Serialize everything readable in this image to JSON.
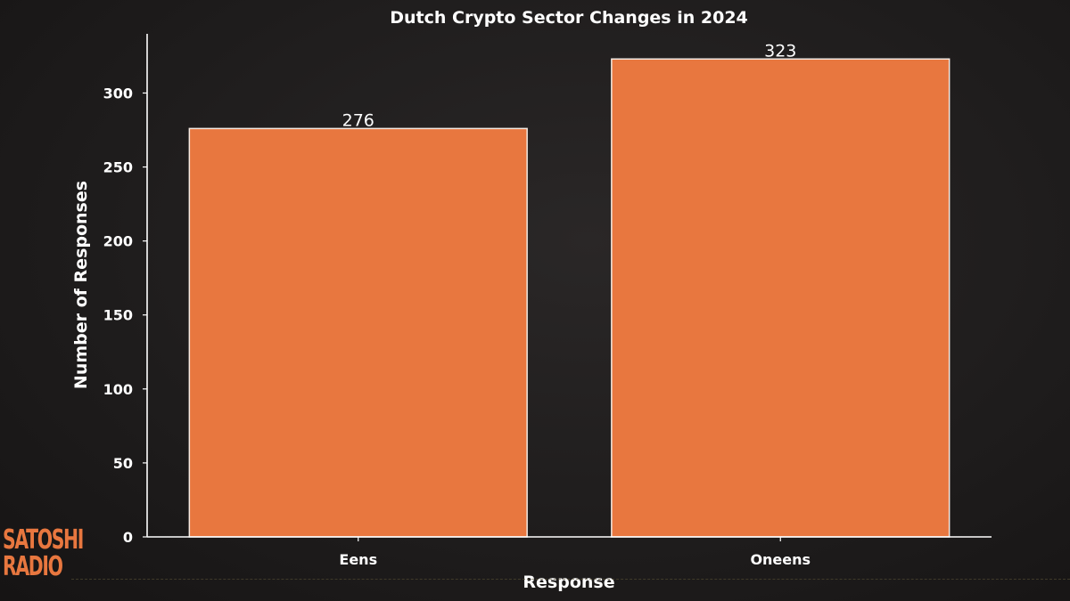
{
  "brand": {
    "line1": "SATOSHI",
    "line2": "RADIO",
    "color": "#e8773f"
  },
  "chart_data": {
    "type": "bar",
    "title": "Dutch Crypto Sector Changes in 2024",
    "xlabel": "Response",
    "ylabel": "Number of Responses",
    "categories": [
      "Eens",
      "Oneens"
    ],
    "values": [
      276,
      323
    ],
    "data_labels": [
      "276",
      "323"
    ],
    "ylim": [
      0,
      340
    ],
    "yticks": [
      0,
      50,
      100,
      150,
      200,
      250,
      300
    ],
    "grid": false,
    "bar_color": "#e8773f",
    "bar_edge_color": "#f3e9e2"
  }
}
